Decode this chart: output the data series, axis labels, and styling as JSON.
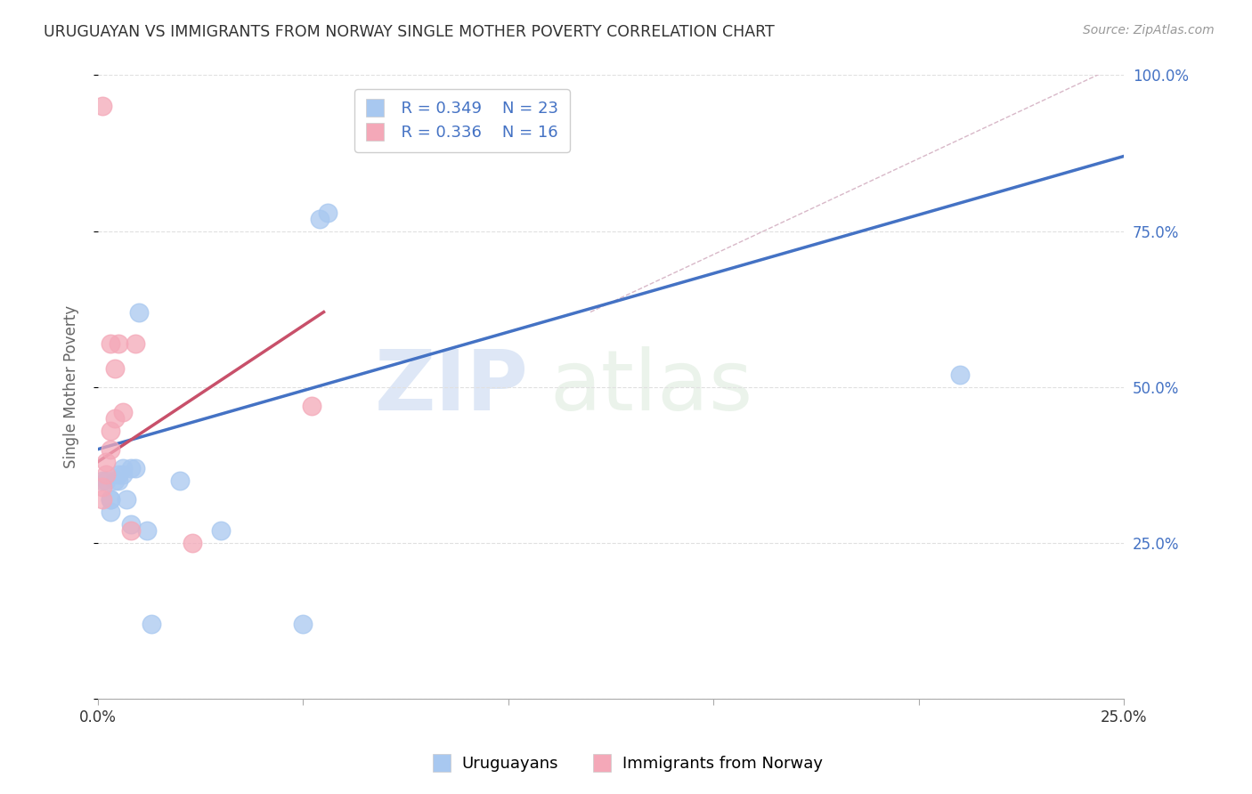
{
  "title": "URUGUAYAN VS IMMIGRANTS FROM NORWAY SINGLE MOTHER POVERTY CORRELATION CHART",
  "source": "Source: ZipAtlas.com",
  "ylabel": "Single Mother Poverty",
  "legend_blue_r": "R = 0.349",
  "legend_blue_n": "N = 23",
  "legend_pink_r": "R = 0.336",
  "legend_pink_n": "N = 16",
  "legend_label_blue": "Uruguayans",
  "legend_label_pink": "Immigrants from Norway",
  "watermark_zip": "ZIP",
  "watermark_atlas": "atlas",
  "blue_dots_x": [
    0.001,
    0.002,
    0.003,
    0.003,
    0.004,
    0.005,
    0.005,
    0.006,
    0.007,
    0.008,
    0.009,
    0.01,
    0.012,
    0.013,
    0.03,
    0.05,
    0.054,
    0.056,
    0.02,
    0.008,
    0.006,
    0.003,
    0.21
  ],
  "blue_dots_y": [
    0.35,
    0.35,
    0.32,
    0.32,
    0.35,
    0.35,
    0.36,
    0.36,
    0.32,
    0.28,
    0.37,
    0.62,
    0.27,
    0.12,
    0.27,
    0.12,
    0.77,
    0.78,
    0.35,
    0.37,
    0.37,
    0.3,
    0.52
  ],
  "pink_dots_x": [
    0.001,
    0.001,
    0.002,
    0.002,
    0.003,
    0.003,
    0.004,
    0.004,
    0.005,
    0.006,
    0.008,
    0.009,
    0.023,
    0.052,
    0.003,
    0.001
  ],
  "pink_dots_y": [
    0.32,
    0.34,
    0.36,
    0.38,
    0.4,
    0.43,
    0.45,
    0.53,
    0.57,
    0.46,
    0.27,
    0.57,
    0.25,
    0.47,
    0.57,
    0.95
  ],
  "blue_line_x": [
    0.0,
    0.25
  ],
  "blue_line_y": [
    0.4,
    0.87
  ],
  "pink_line_x": [
    0.0,
    0.055
  ],
  "pink_line_y": [
    0.38,
    0.62
  ],
  "diag_line_x": [
    0.12,
    0.25
  ],
  "diag_line_y": [
    0.62,
    1.02
  ],
  "xmin": 0.0,
  "xmax": 0.25,
  "ymin": 0.0,
  "ymax": 1.0,
  "xticks": [
    0.0,
    0.05,
    0.1,
    0.15,
    0.2,
    0.25
  ],
  "xticklabels": [
    "0.0%",
    "",
    "",
    "",
    "",
    "25.0%"
  ],
  "yticks": [
    0.0,
    0.25,
    0.5,
    0.75,
    1.0
  ],
  "yticklabels_right": [
    "",
    "25.0%",
    "50.0%",
    "75.0%",
    "100.0%"
  ],
  "bg_color": "#ffffff",
  "blue_dot_color": "#a8c8f0",
  "blue_line_color": "#4472c4",
  "pink_dot_color": "#f4a8b8",
  "pink_line_color": "#c8506a",
  "diag_line_color": "#d8b8c8",
  "grid_color": "#e0e0e0",
  "title_color": "#333333",
  "axis_label_color": "#666666",
  "right_axis_color": "#4472c4",
  "watermark_color": "#c8d8f0",
  "watermark_color2": "#d8e8d8"
}
